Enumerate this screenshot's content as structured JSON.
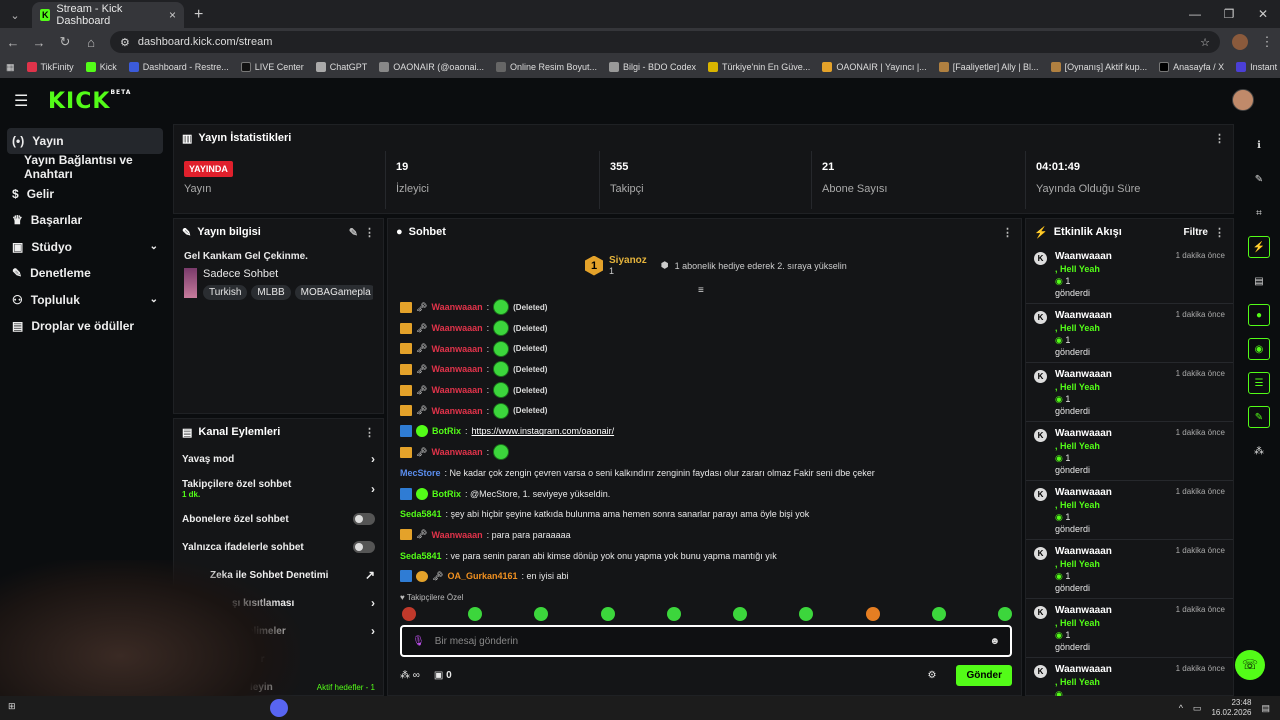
{
  "browser": {
    "tab_title": "Stream - Kick Dashboard",
    "url": "dashboard.kick.com/stream",
    "bookmarks": [
      "TikFinity",
      "Kick",
      "Dashboard - Restre...",
      "LIVE Center",
      "ChatGPT",
      "OAONAIR (@oaonai...",
      "Online Resim Boyut...",
      "Bilgi - BDO Codex",
      "Türkiye'nin En Güve...",
      "OAONAIR | Yayıncı |...",
      "[Faaliyetler] Ally | Bl...",
      "[Oynanış] Aktif kup...",
      "Anasayfa / X",
      "Instant Background..."
    ]
  },
  "header": {
    "logo": "KICK",
    "logo_sup": "BETA"
  },
  "sidebar": {
    "items": [
      {
        "label": "Yayın"
      },
      {
        "label": "Yayın Bağlantısı ve Anahtarı"
      },
      {
        "label": "Gelir"
      },
      {
        "label": "Başarılar"
      },
      {
        "label": "Stüdyo"
      },
      {
        "label": "Denetleme"
      },
      {
        "label": "Topluluk"
      },
      {
        "label": "Droplar ve ödüller"
      }
    ]
  },
  "stats": {
    "title": "Yayın İstatistikleri",
    "live_badge": "YAYINDA",
    "live_label": "Yayın",
    "viewers": "19",
    "viewers_label": "İzleyici",
    "followers": "355",
    "followers_label": "Takipçi",
    "subs": "21",
    "subs_label": "Abone Sayısı",
    "uptime": "04:01:49",
    "uptime_label": "Yayında Olduğu Süre"
  },
  "info": {
    "title": "Yayın bilgisi",
    "stream_title": "Gel Kankam Gel Çekinme.",
    "category": "Sadece Sohbet",
    "tags": [
      "Turkish",
      "MLBB",
      "MOBAGamepla"
    ]
  },
  "actions": {
    "title": "Kanal Eylemleri",
    "slow": "Yavaş mod",
    "followers_only": "Takipçilere özel sohbet",
    "followers_only_sub": "1 dk.",
    "subs_only": "Abonelere özel sohbet",
    "emotes_only": "Yalnızca ifadelerle sohbet",
    "ai_mod": "Zeka ile Sohbet Denetimi",
    "restriction": "şı kısıtlaması",
    "words": "ş kelimeler",
    "other": "endir",
    "goals": "leyin",
    "goals_status": "Aktif hedefler - 1"
  },
  "chat": {
    "title": "Sohbet",
    "pinned_rank": "1",
    "pinned_user": "Siyanoz",
    "pinned_count": "1",
    "pinned_text": "1 abonelik hediye ederek 2. sıraya yükselin",
    "deleted_user": "Waanwaaan",
    "deleted_text": "(Deleted)",
    "botrix": "BotRix",
    "botrix_link": "https://www.instagram.com/oaonair/",
    "mec_user": "MecStore",
    "mec_text": ": Ne kadar çok zengin çevren varsa o seni kalkındırır zenginin faydası olur zararı olmaz Fakir seni dbe çeker",
    "botrix_level": ": @MecStore, 1. seviyeye yükseldin.",
    "seda_user": "Seda5841",
    "seda_text1": ": şey abi hiçbir şeyine katkıda bulunma ama hemen sonra sanarlar parayı ama öyle bişi yok",
    "waan_text2": ": para para paraaaaa",
    "seda_text2": ": ve para senin paran abi kimse dönüp yok onu yapma yok bunu yapma mantığı yık",
    "gurkan_user": "OA_Gurkan4161",
    "gurkan_text": ": en iyisi abi",
    "followers_only": "Takipçilere Özel",
    "placeholder": "Bir mesaj gönderin",
    "counter": "0",
    "send": "Gönder"
  },
  "activity": {
    "title": "Etkinlik Akışı",
    "filter": "Filtre",
    "events": [
      {
        "user": "Waanwaaan",
        "gift": ", Hell Yeah",
        "count": "1",
        "sent": "gönderdi",
        "time": "1 dakika önce"
      },
      {
        "user": "Waanwaaan",
        "gift": ", Hell Yeah",
        "count": "1",
        "sent": "gönderdi",
        "time": "1 dakika önce"
      },
      {
        "user": "Waanwaaan",
        "gift": ", Hell Yeah",
        "count": "1",
        "sent": "gönderdi",
        "time": "1 dakika önce"
      },
      {
        "user": "Waanwaaan",
        "gift": ", Hell Yeah",
        "count": "1",
        "sent": "gönderdi",
        "time": "1 dakika önce"
      },
      {
        "user": "Waanwaaan",
        "gift": ", Hell Yeah",
        "count": "1",
        "sent": "gönderdi",
        "time": "1 dakika önce"
      },
      {
        "user": "Waanwaaan",
        "gift": ", Hell Yeah",
        "count": "1",
        "sent": "gönderdi",
        "time": "1 dakika önce"
      },
      {
        "user": "Waanwaaan",
        "gift": ", Hell Yeah",
        "count": "1",
        "sent": "gönderdi",
        "time": "1 dakika önce"
      },
      {
        "user": "Waanwaaan",
        "gift": ", Hell Yeah",
        "count": "",
        "sent": "",
        "time": "1 dakika önce"
      }
    ]
  },
  "taskbar": {
    "time": "23:48",
    "date": "16.02.2026"
  },
  "colors": {
    "accent": "#53fc18",
    "live": "#e0202c"
  }
}
